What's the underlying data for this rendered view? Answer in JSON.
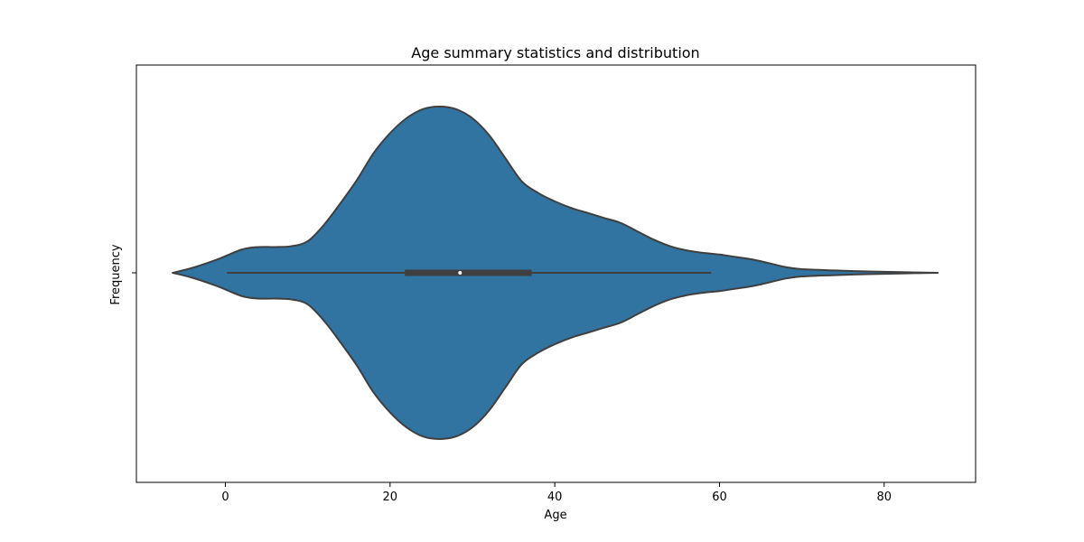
{
  "chart_data": {
    "type": "violin",
    "title": "Age summary statistics and distribution",
    "xlabel": "Age",
    "ylabel": "Frequency",
    "xlim": [
      -10.8,
      91.1
    ],
    "x_ticks": [
      0,
      20,
      40,
      60,
      80
    ],
    "x_tick_labels": [
      "0",
      "20",
      "40",
      "60",
      "80"
    ],
    "grid": false,
    "fill_color": "#3274a1",
    "outline_color": "#3f3f3f",
    "violin": {
      "support": [
        -6.4,
        86.5
      ],
      "density_profile": [
        {
          "x": -6.4,
          "d": 0.0
        },
        {
          "x": -4.0,
          "d": 0.03
        },
        {
          "x": -1.0,
          "d": 0.08
        },
        {
          "x": 2.0,
          "d": 0.14
        },
        {
          "x": 4.0,
          "d": 0.155
        },
        {
          "x": 6.0,
          "d": 0.155
        },
        {
          "x": 8.0,
          "d": 0.16
        },
        {
          "x": 10.0,
          "d": 0.19
        },
        {
          "x": 12.0,
          "d": 0.29
        },
        {
          "x": 14.0,
          "d": 0.42
        },
        {
          "x": 16.0,
          "d": 0.56
        },
        {
          "x": 18.0,
          "d": 0.72
        },
        {
          "x": 20.0,
          "d": 0.84
        },
        {
          "x": 22.0,
          "d": 0.93
        },
        {
          "x": 24.0,
          "d": 0.985
        },
        {
          "x": 26.0,
          "d": 1.0
        },
        {
          "x": 28.0,
          "d": 0.985
        },
        {
          "x": 30.0,
          "d": 0.93
        },
        {
          "x": 32.0,
          "d": 0.83
        },
        {
          "x": 34.0,
          "d": 0.69
        },
        {
          "x": 36.0,
          "d": 0.55
        },
        {
          "x": 38.0,
          "d": 0.48
        },
        {
          "x": 40.0,
          "d": 0.43
        },
        {
          "x": 42.0,
          "d": 0.39
        },
        {
          "x": 44.0,
          "d": 0.36
        },
        {
          "x": 46.0,
          "d": 0.33
        },
        {
          "x": 48.0,
          "d": 0.3
        },
        {
          "x": 50.0,
          "d": 0.25
        },
        {
          "x": 52.0,
          "d": 0.2
        },
        {
          "x": 54.0,
          "d": 0.16
        },
        {
          "x": 56.0,
          "d": 0.135
        },
        {
          "x": 58.0,
          "d": 0.12
        },
        {
          "x": 60.0,
          "d": 0.11
        },
        {
          "x": 62.0,
          "d": 0.095
        },
        {
          "x": 64.0,
          "d": 0.08
        },
        {
          "x": 66.0,
          "d": 0.058
        },
        {
          "x": 68.0,
          "d": 0.035
        },
        {
          "x": 70.0,
          "d": 0.022
        },
        {
          "x": 74.0,
          "d": 0.014
        },
        {
          "x": 78.0,
          "d": 0.008
        },
        {
          "x": 82.0,
          "d": 0.004
        },
        {
          "x": 86.5,
          "d": 0.0
        }
      ],
      "box": {
        "whisker_low": 0.2,
        "q1": 21.8,
        "median": 28.5,
        "q3": 37.2,
        "whisker_high": 59.0
      }
    }
  }
}
